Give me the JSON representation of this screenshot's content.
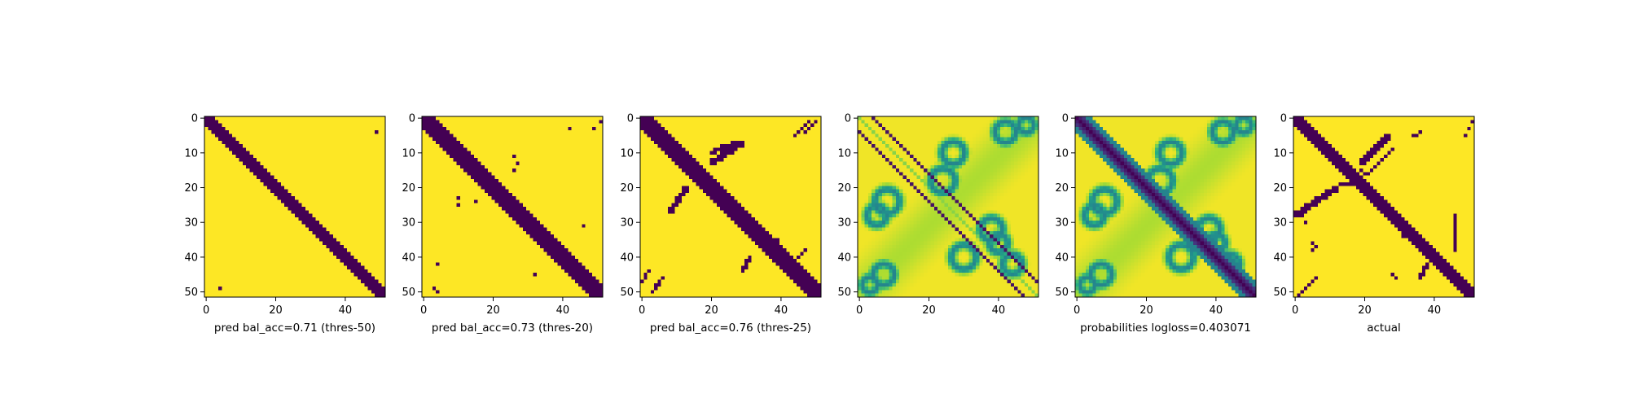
{
  "colors": {
    "low": "#440154",
    "high": "#fde725",
    "viridis": [
      "#440154",
      "#472c7a",
      "#3b518b",
      "#2c718e",
      "#21908d",
      "#27ad81",
      "#5cc863",
      "#aadc32",
      "#fde725"
    ]
  },
  "chart_data": [
    {
      "type": "heatmap",
      "grid_size": 52,
      "title": "",
      "xlabel": "pred bal_acc=0.71 (thres-50)",
      "ylabel": "",
      "xticks": [
        "0",
        "20",
        "40"
      ],
      "yticks": [
        "0",
        "10",
        "20",
        "30",
        "40",
        "50"
      ],
      "values_description": "binary matrix",
      "band_halfwidth": 2.5,
      "features": [
        {
          "kind": "point",
          "row": 4,
          "col": 49
        },
        {
          "kind": "point",
          "row": 49,
          "col": 4
        }
      ]
    },
    {
      "type": "heatmap",
      "grid_size": 52,
      "title": "",
      "xlabel": "pred bal_acc=0.73 (thres-20)",
      "ylabel": "",
      "xticks": [
        "0",
        "20",
        "40"
      ],
      "yticks": [
        "0",
        "10",
        "20",
        "30",
        "40",
        "50"
      ],
      "band_halfwidth": 3,
      "features": [
        {
          "kind": "point",
          "row": 3,
          "col": 42
        },
        {
          "kind": "point",
          "row": 3,
          "col": 49
        },
        {
          "kind": "point",
          "row": 1,
          "col": 51
        },
        {
          "kind": "point",
          "row": 11,
          "col": 26
        },
        {
          "kind": "point",
          "row": 13,
          "col": 27
        },
        {
          "kind": "point",
          "row": 15,
          "col": 26
        },
        {
          "kind": "point",
          "row": 23,
          "col": 10
        },
        {
          "kind": "point",
          "row": 25,
          "col": 10
        },
        {
          "kind": "point",
          "row": 24,
          "col": 15
        },
        {
          "kind": "point",
          "row": 31,
          "col": 46
        },
        {
          "kind": "point",
          "row": 45,
          "col": 32
        },
        {
          "kind": "point",
          "row": 42,
          "col": 4
        },
        {
          "kind": "point",
          "row": 49,
          "col": 3
        },
        {
          "kind": "point",
          "row": 50,
          "col": 4
        }
      ]
    },
    {
      "type": "heatmap",
      "grid_size": 52,
      "title": "",
      "xlabel": "pred bal_acc=0.76 (thres-25)",
      "ylabel": "",
      "xticks": [
        "0",
        "20",
        "40"
      ],
      "yticks": [
        "0",
        "10",
        "20",
        "30",
        "40",
        "50"
      ],
      "band_halfwidth": 3.5,
      "features": [
        {
          "kind": "segment",
          "r0": 13,
          "c0": 20,
          "r1": 7,
          "c1": 29,
          "w": 1.6
        },
        {
          "kind": "segment",
          "r0": 10,
          "c0": 20,
          "r1": 7,
          "c1": 27,
          "w": 1.2
        },
        {
          "kind": "segment",
          "r0": 27,
          "c0": 8,
          "r1": 20,
          "c1": 13,
          "w": 1.5
        },
        {
          "kind": "segment",
          "r0": 5,
          "c0": 44,
          "r1": 1,
          "c1": 48,
          "w": 0.9
        },
        {
          "kind": "segment",
          "r0": 4,
          "c0": 47,
          "r1": 1,
          "c1": 50,
          "w": 0.8
        },
        {
          "kind": "segment",
          "r0": 44,
          "c0": 29,
          "r1": 40,
          "c1": 31,
          "w": 1.0
        },
        {
          "kind": "segment",
          "r0": 42,
          "c0": 43,
          "r1": 38,
          "c1": 47,
          "w": 0.8
        },
        {
          "kind": "segment",
          "r0": 50,
          "c0": 3,
          "r1": 46,
          "c1": 6,
          "w": 1.0
        },
        {
          "kind": "segment",
          "r0": 47,
          "c0": 0,
          "r1": 44,
          "c1": 2,
          "w": 1.0
        },
        {
          "kind": "point",
          "row": 35,
          "col": 39
        },
        {
          "kind": "point",
          "row": 37,
          "col": 40
        }
      ]
    },
    {
      "type": "heatmap",
      "grid_size": 52,
      "title": "",
      "xlabel": "",
      "ylabel": "",
      "xticks": [
        "0",
        "20",
        "40"
      ],
      "yticks": [
        "0",
        "10",
        "20",
        "30",
        "40",
        "50"
      ],
      "values_description": "continuous probabilities (viridis)",
      "diagonal_offsets": [
        4,
        -4
      ],
      "structures": "double off-diagonal lines with curved loop motifs"
    },
    {
      "type": "heatmap",
      "grid_size": 52,
      "title": "",
      "xlabel": "probabilities logloss=0.403071",
      "ylabel": "",
      "xticks": [
        "0",
        "20",
        "40"
      ],
      "yticks": [
        "0",
        "10",
        "20",
        "30",
        "40",
        "50"
      ],
      "values_description": "continuous probabilities (viridis), strong main diagonal",
      "band_halfwidth": 2.5
    },
    {
      "type": "heatmap",
      "grid_size": 52,
      "title": "",
      "xlabel": "actual",
      "ylabel": "",
      "xticks": [
        "0",
        "20",
        "40"
      ],
      "yticks": [
        "0",
        "10",
        "20",
        "30",
        "40",
        "50"
      ],
      "values_description": "binary contact matrix",
      "band_halfwidth": 2.5,
      "features": [
        {
          "kind": "segment",
          "r0": 28,
          "c0": 0,
          "r1": 20,
          "c1": 12,
          "w": 1.6
        },
        {
          "kind": "segment",
          "r0": 13,
          "c0": 19,
          "r1": 5,
          "c1": 27,
          "w": 1.4
        },
        {
          "kind": "segment",
          "r0": 16,
          "c0": 21,
          "r1": 9,
          "c1": 28,
          "w": 1.0
        },
        {
          "kind": "segment",
          "r0": 51,
          "c0": 1,
          "r1": 46,
          "c1": 6,
          "w": 1.2
        },
        {
          "kind": "segment",
          "r0": 33,
          "c0": 31,
          "r1": 44,
          "c1": 45,
          "w": 1.6
        },
        {
          "kind": "segment",
          "r0": 38,
          "c0": 46,
          "r1": 28,
          "c1": 46,
          "w": 1.3
        },
        {
          "kind": "segment",
          "r0": 42,
          "c0": 38,
          "r1": 46,
          "c1": 36,
          "w": 1.4
        },
        {
          "kind": "segment",
          "r0": 5,
          "c0": 49,
          "r1": 1,
          "c1": 51,
          "w": 0.8
        },
        {
          "kind": "segment",
          "r0": 19,
          "c0": 13,
          "r1": 19,
          "c1": 16,
          "w": 0.6
        },
        {
          "kind": "point",
          "row": 5,
          "col": 34
        },
        {
          "kind": "point",
          "row": 5,
          "col": 35
        },
        {
          "kind": "point",
          "row": 4,
          "col": 36
        },
        {
          "kind": "point",
          "row": 15,
          "col": 19
        },
        {
          "kind": "point",
          "row": 16,
          "col": 20
        },
        {
          "kind": "point",
          "row": 36,
          "col": 5
        },
        {
          "kind": "point",
          "row": 37,
          "col": 6
        },
        {
          "kind": "point",
          "row": 38,
          "col": 5
        },
        {
          "kind": "point",
          "row": 28,
          "col": 2
        },
        {
          "kind": "point",
          "row": 30,
          "col": 3
        },
        {
          "kind": "point",
          "row": 45,
          "col": 28
        },
        {
          "kind": "point",
          "row": 46,
          "col": 29
        }
      ]
    }
  ]
}
